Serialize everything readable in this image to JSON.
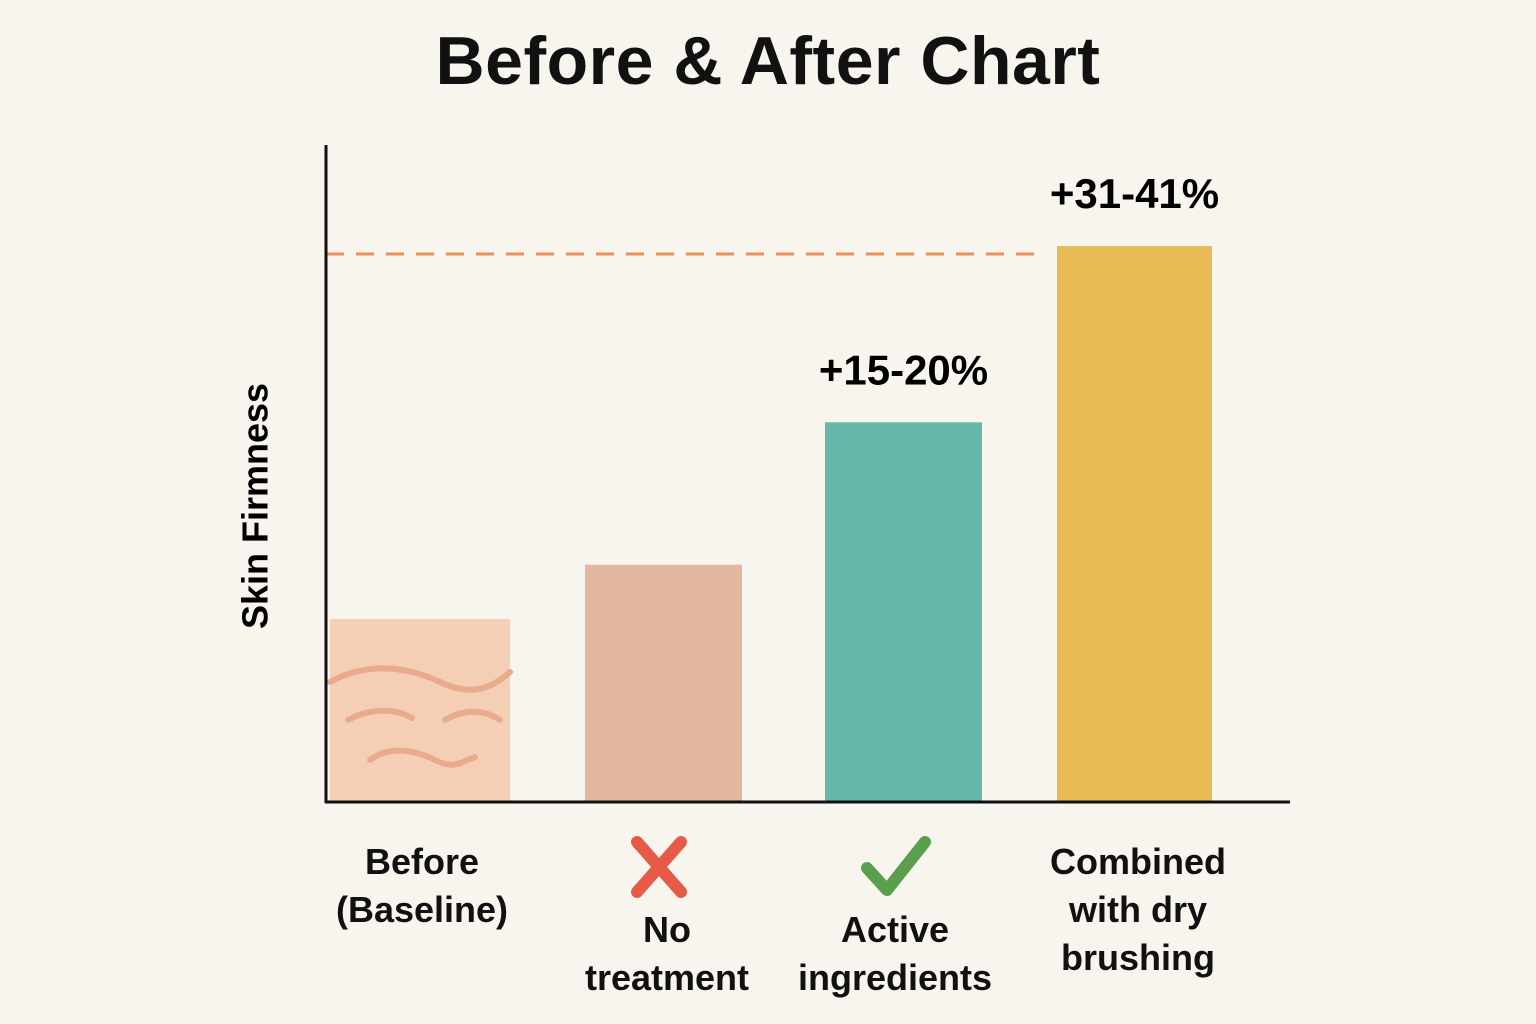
{
  "chart_data": {
    "type": "bar",
    "title": "Before & After Chart",
    "xlabel": "",
    "ylabel": "Skin Firmness",
    "ylim": [
      0,
      100
    ],
    "categories": [
      "Before (Baseline)",
      "No treatment",
      "Active ingredients",
      "Combined with dry brushing"
    ],
    "category_lines": [
      [
        "Before",
        "(Baseline)"
      ],
      [
        "No",
        "treatment"
      ],
      [
        "Active",
        "ingredients"
      ],
      [
        "Combined",
        "with dry",
        "brushing"
      ]
    ],
    "values": [
      27,
      35,
      56,
      82
    ],
    "data_labels": [
      "",
      "",
      "+15-20%",
      "+31-41%"
    ],
    "bar_colors": [
      "#f5cfb5",
      "#e3b89e",
      "#63b7ab",
      "#e8bb55"
    ],
    "reference_line": {
      "value": 82,
      "style": "dashed",
      "color": "#e8905a"
    },
    "category_icons": [
      "",
      "cross-icon",
      "check-icon",
      ""
    ],
    "icon_colors": {
      "cross-icon": "#e85a48",
      "check-icon": "#5a9e4e"
    },
    "baseline_pattern": "wavy-lines",
    "wave_color": "#e8ac8c",
    "axis_color": "#111111",
    "grid": false,
    "legend": "none"
  }
}
